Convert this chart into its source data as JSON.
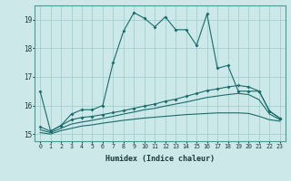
{
  "xlabel": "Humidex (Indice chaleur)",
  "bg_color": "#cce8e8",
  "grid_color": "#99cccc",
  "line_color": "#1a6b6b",
  "xlim": [
    -0.5,
    23.5
  ],
  "ylim": [
    14.75,
    19.5
  ],
  "yticks": [
    15,
    16,
    17,
    18,
    19
  ],
  "xticks": [
    0,
    1,
    2,
    3,
    4,
    5,
    6,
    7,
    8,
    9,
    10,
    11,
    12,
    13,
    14,
    15,
    16,
    17,
    18,
    19,
    20,
    21,
    22,
    23
  ],
  "line1_x": [
    0,
    1,
    2,
    3,
    4,
    5,
    6,
    7,
    8,
    9,
    10,
    11,
    12,
    13,
    14,
    15,
    16,
    17,
    18,
    19,
    20,
    21,
    22,
    23
  ],
  "line1_y": [
    16.5,
    15.1,
    15.3,
    15.7,
    15.85,
    15.85,
    16.0,
    17.5,
    18.6,
    19.25,
    19.05,
    18.75,
    19.1,
    18.65,
    18.65,
    18.1,
    19.2,
    17.3,
    17.4,
    16.5,
    16.5,
    16.5,
    15.8,
    15.55
  ],
  "line2_x": [
    0,
    1,
    2,
    3,
    4,
    5,
    6,
    7,
    8,
    9,
    10,
    11,
    12,
    13,
    14,
    15,
    16,
    17,
    18,
    19,
    20,
    21,
    22,
    23
  ],
  "line2_y": [
    15.25,
    15.1,
    15.3,
    15.5,
    15.58,
    15.62,
    15.68,
    15.75,
    15.82,
    15.9,
    15.98,
    16.05,
    16.15,
    16.22,
    16.32,
    16.42,
    16.52,
    16.58,
    16.65,
    16.7,
    16.65,
    16.5,
    15.8,
    15.55
  ],
  "line3_x": [
    0,
    1,
    2,
    3,
    4,
    5,
    6,
    7,
    8,
    9,
    10,
    11,
    12,
    13,
    14,
    15,
    16,
    17,
    18,
    19,
    20,
    21,
    22,
    23
  ],
  "line3_y": [
    15.15,
    15.05,
    15.2,
    15.35,
    15.42,
    15.48,
    15.55,
    15.62,
    15.7,
    15.77,
    15.85,
    15.9,
    15.98,
    16.05,
    16.12,
    16.2,
    16.28,
    16.33,
    16.38,
    16.42,
    16.38,
    16.2,
    15.7,
    15.5
  ],
  "line4_x": [
    0,
    1,
    2,
    3,
    4,
    5,
    6,
    7,
    8,
    9,
    10,
    11,
    12,
    13,
    14,
    15,
    16,
    17,
    18,
    19,
    20,
    21,
    22,
    23
  ],
  "line4_y": [
    15.05,
    15.0,
    15.12,
    15.2,
    15.28,
    15.32,
    15.38,
    15.43,
    15.48,
    15.52,
    15.56,
    15.59,
    15.62,
    15.65,
    15.68,
    15.7,
    15.72,
    15.74,
    15.74,
    15.74,
    15.72,
    15.62,
    15.5,
    15.45
  ]
}
